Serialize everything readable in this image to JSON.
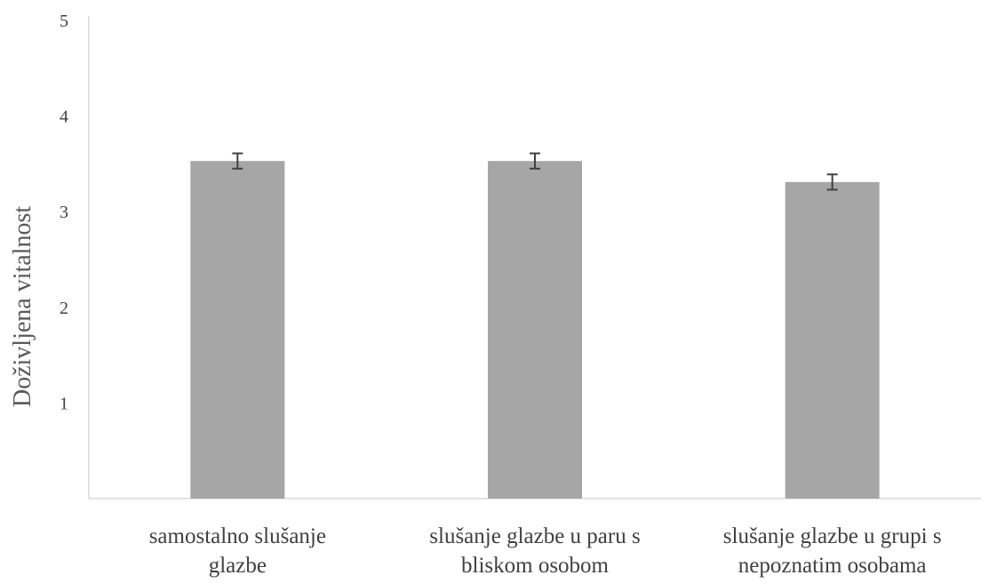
{
  "chart_data": {
    "type": "bar",
    "title": "",
    "xlabel": "",
    "ylabel": "Doživljena vitalnost",
    "ylim": [
      0,
      5
    ],
    "yticks": [
      "1",
      "2",
      "3",
      "4",
      "5"
    ],
    "categories": [
      [
        "samostalno slušanje",
        "glazbe"
      ],
      [
        "slušanje glazbe u paru s",
        "bliskom osobom"
      ],
      [
        "slušanje glazbe u grupi s",
        "nepoznatim osobama"
      ]
    ],
    "values": [
      3.53,
      3.53,
      3.31
    ],
    "error": [
      0.08,
      0.08,
      0.08
    ],
    "bar_color": "#a6a6a6",
    "axis_color": "#d9d9d9",
    "errorbar_color": "#404040",
    "grid": false,
    "legend": "none"
  }
}
